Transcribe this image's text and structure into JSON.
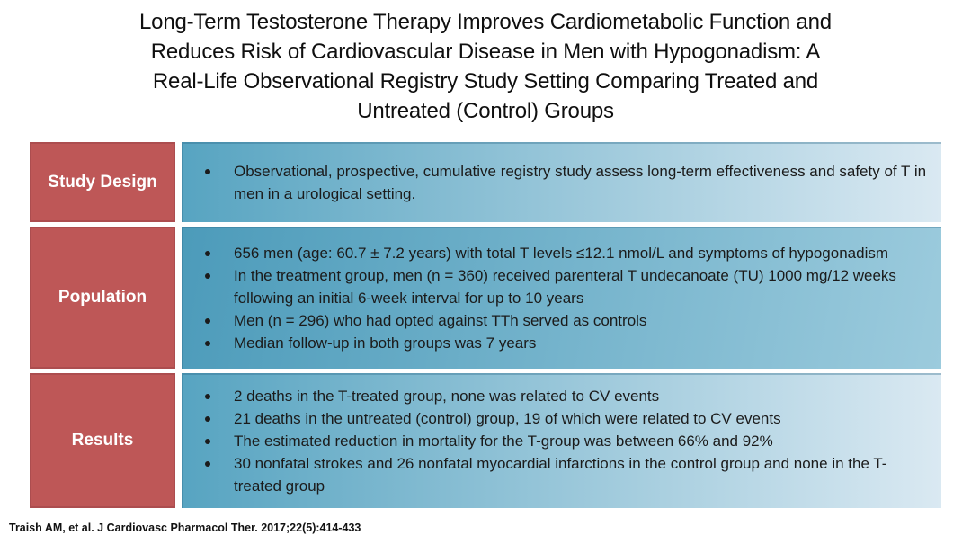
{
  "title": {
    "full": "Long-Term Testosterone Therapy Improves Cardiometabolic Function and Reduces Risk of Cardiovascular Disease in Men with Hypogonadism: A Real-Life Observational Registry Study Setting Comparing Treated and Untreated (Control) Groups",
    "lines": [
      "Long-Term Testosterone Therapy Improves Cardiometabolic Function and",
      "Reduces Risk of Cardiovascular Disease in Men with Hypogonadism: A",
      "Real-Life Observational Registry Study Setting Comparing Treated and",
      "Untreated (Control) Groups"
    ]
  },
  "table": {
    "rows": [
      {
        "label": "Study Design",
        "bullets": [
          "Observational, prospective, cumulative registry study assess long-term effectiveness and safety of T in men in a urological setting."
        ]
      },
      {
        "label": "Population",
        "bullets": [
          "656 men (age: 60.7 ± 7.2 years) with total T levels ≤12.1 nmol/L and symptoms of hypogonadism",
          "In the treatment group, men (n = 360) received parenteral T undecanoate (TU) 1000 mg/12 weeks following an initial 6-week interval for up to 10 years",
          "Men (n = 296) who had opted against TTh served as controls",
          "Median follow-up in both groups was 7 years"
        ]
      },
      {
        "label": "Results",
        "bullets": [
          "2 deaths in the T-treated group, none was related to CV events",
          "21 deaths in the untreated (control) group, 19 of which were related to CV events",
          "The estimated reduction in mortality for the T-group was between 66% and 92%",
          "30 nonfatal strokes and 26 nonfatal myocardial infarctions in the control group and none in the T-treated group"
        ]
      }
    ]
  },
  "footer": {
    "citation": "Traish AM, et al. J Cardiovasc Pharmacol Ther. 2017;22(5):414-433"
  },
  "colors": {
    "label_bg": "#BE5757",
    "label_border": "#AC4D4F",
    "label_text": "#FFFFFF",
    "content_gradient_start": "#57A4C1",
    "content_gradient_light_end": "#DAE9F2",
    "content_gradient_mid_end": "#9CCBDD",
    "body_text": "#1B1B1B",
    "title_text": "#0F0F0F"
  }
}
